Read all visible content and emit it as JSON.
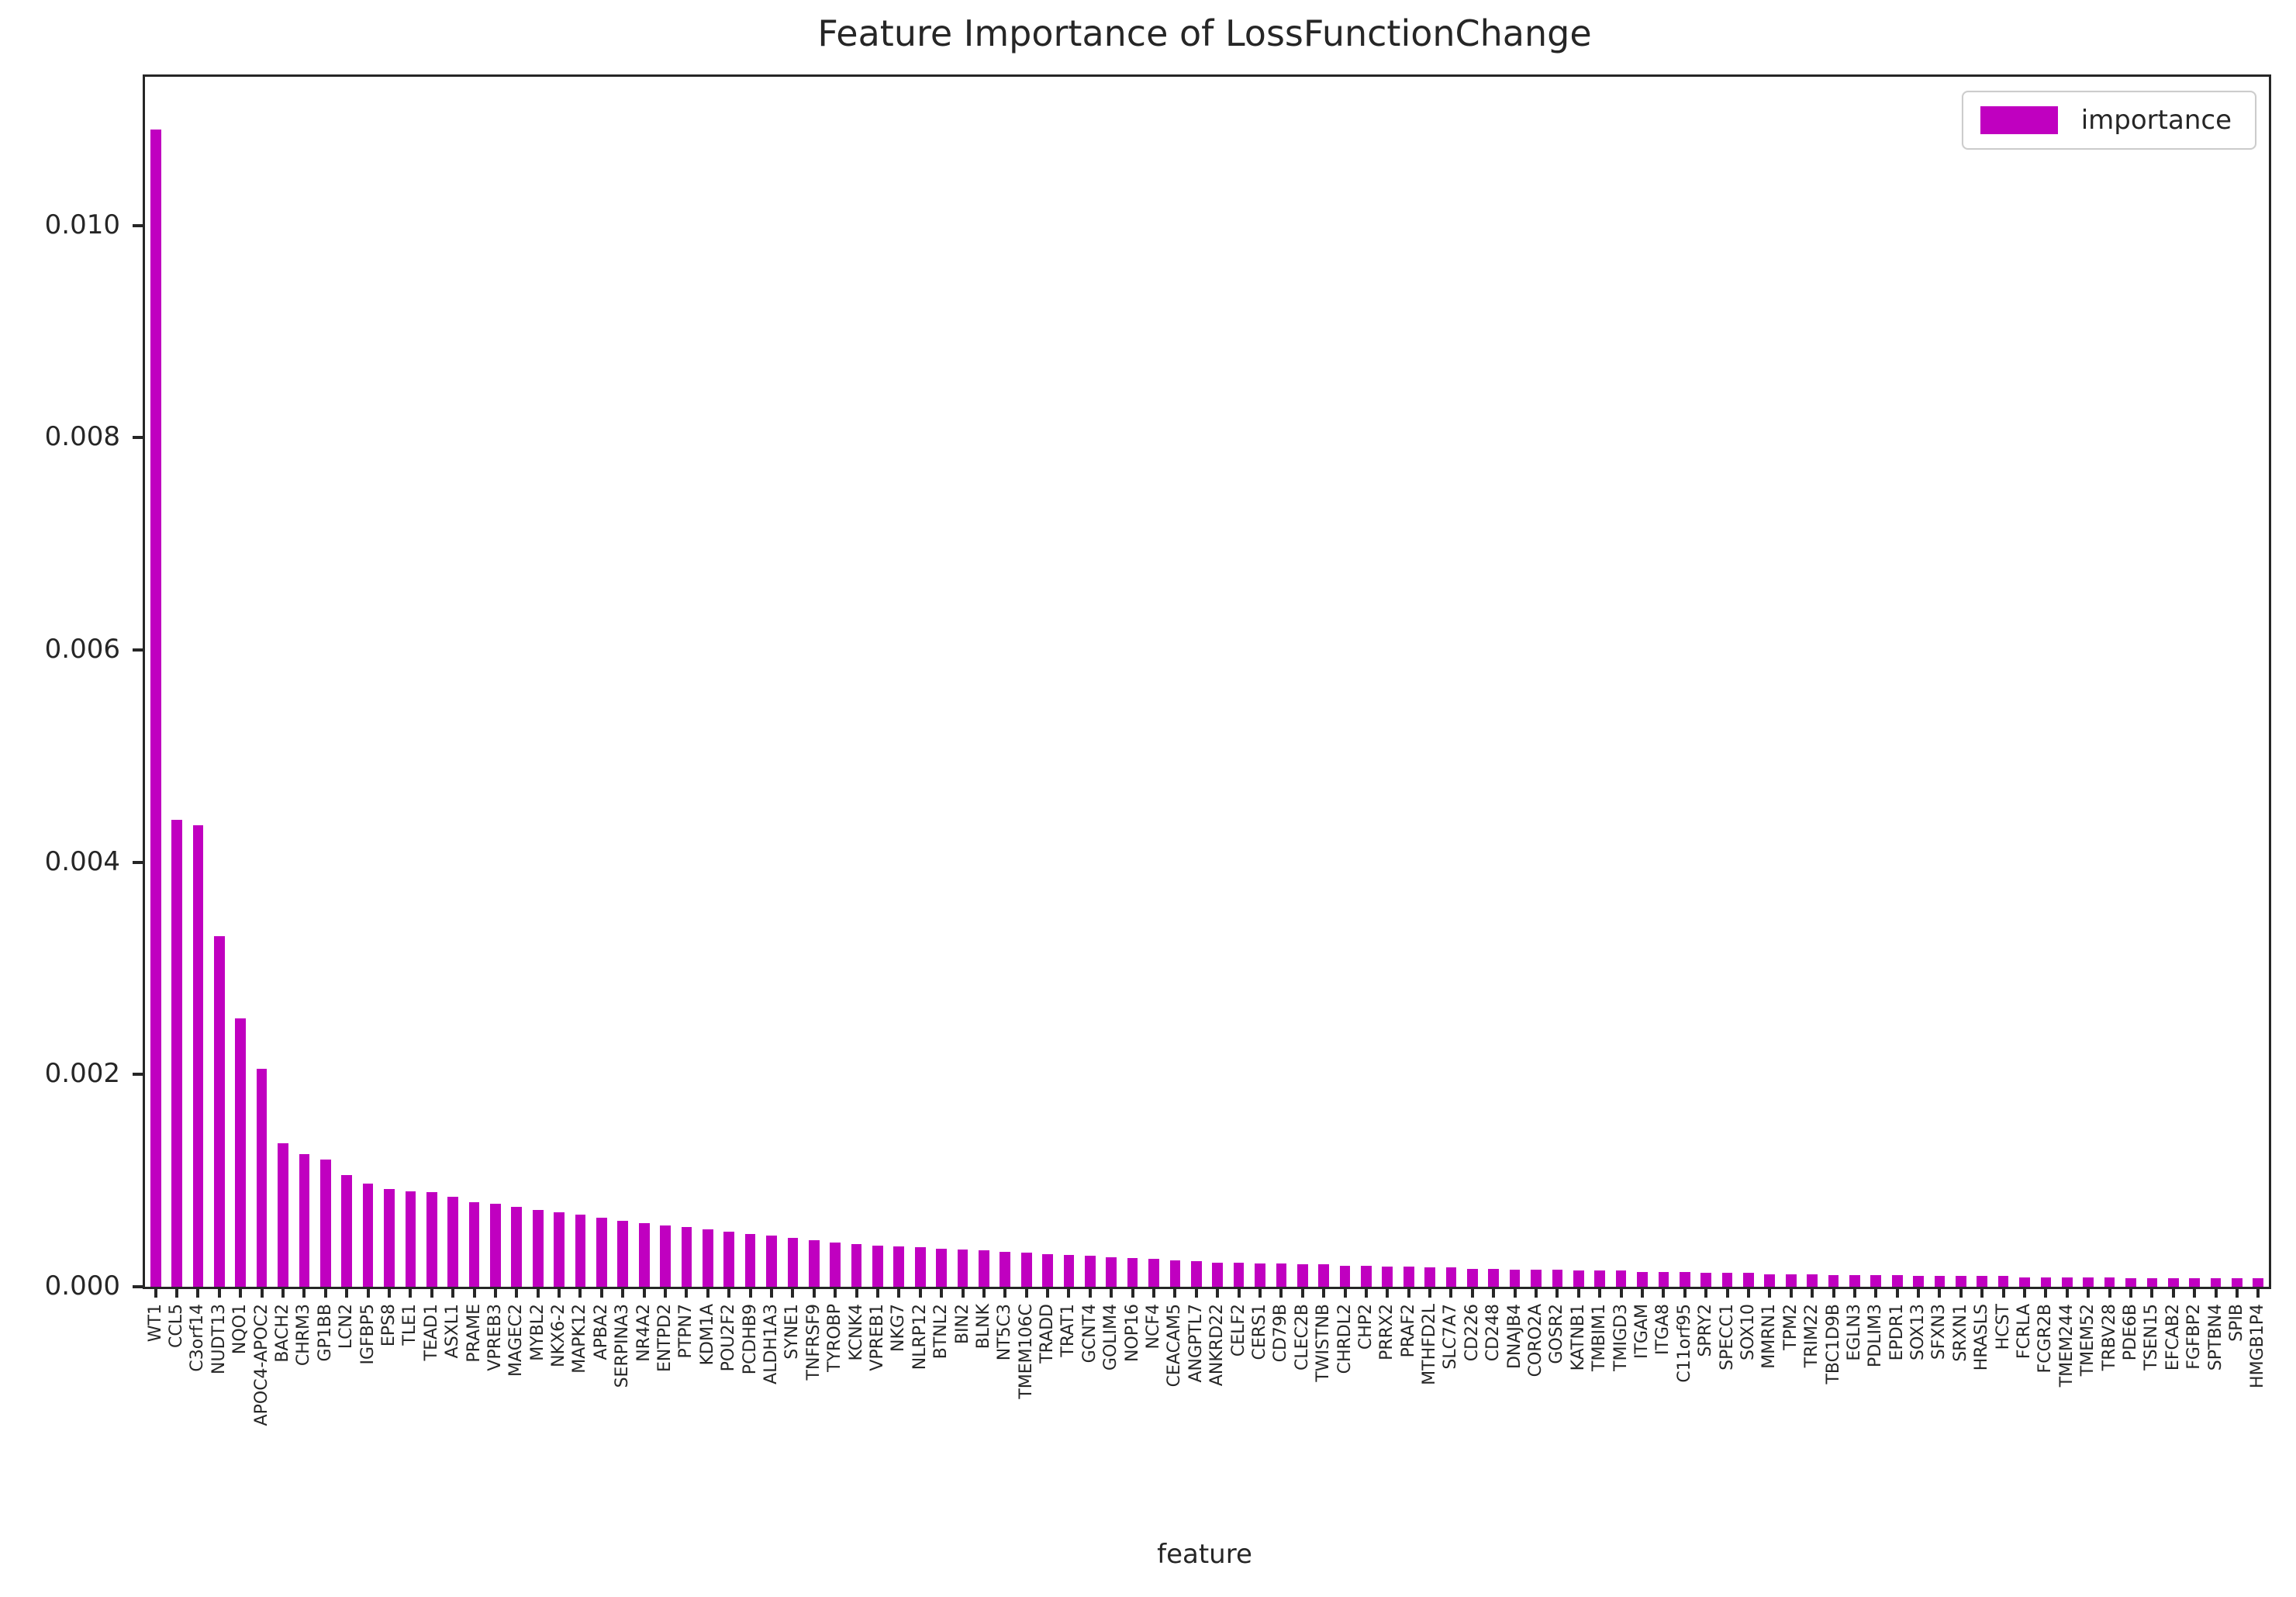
{
  "chart_data": {
    "type": "bar",
    "title": "Feature Importance of LossFunctionChange",
    "xlabel": "feature",
    "ylabel": "",
    "legend": [
      "importance"
    ],
    "legend_position": "upper right",
    "grid": false,
    "bar_color": "#C000C0",
    "axis_color": "#262626",
    "ylim": [
      0,
      0.0114
    ],
    "y_ticks": [
      0.0,
      0.002,
      0.004,
      0.006,
      0.008,
      0.01
    ],
    "y_tick_labels": [
      "0.000",
      "0.002",
      "0.004",
      "0.006",
      "0.008",
      "0.010"
    ],
    "categories": [
      "WT1",
      "CCL5",
      "C3orf14",
      "NUDT13",
      "NQO1",
      "APOC4-APOC2",
      "BACH2",
      "CHRM3",
      "GP1BB",
      "LCN2",
      "IGFBP5",
      "EPS8",
      "TLE1",
      "TEAD1",
      "ASXL1",
      "PRAME",
      "VPREB3",
      "MAGEC2",
      "MYBL2",
      "NKX6-2",
      "MAPK12",
      "APBA2",
      "SERPINA3",
      "NR4A2",
      "ENTPD2",
      "PTPN7",
      "KDM1A",
      "POU2F2",
      "PCDHB9",
      "ALDH1A3",
      "SYNE1",
      "TNFRSF9",
      "TYROBP",
      "KCNK4",
      "VPREB1",
      "NKG7",
      "NLRP12",
      "BTNL2",
      "BIN2",
      "BLNK",
      "NT5C3",
      "TMEM106C",
      "TRADD",
      "TRAT1",
      "GCNT4",
      "GOLIM4",
      "NOP16",
      "NCF4",
      "CEACAM5",
      "ANGPTL7",
      "ANKRD22",
      "CELF2",
      "CERS1",
      "CD79B",
      "CLEC2B",
      "TWISTNB",
      "CHRDL2",
      "CHP2",
      "PRRX2",
      "PRAF2",
      "MTHFD2L",
      "SLC7A7",
      "CD226",
      "CD248",
      "DNAJB4",
      "CORO2A",
      "GOSR2",
      "KATNB1",
      "TMBIM1",
      "TMIGD3",
      "ITGAM",
      "ITGA8",
      "C11orf95",
      "SPRY2",
      "SPECC1",
      "SOX10",
      "MMRN1",
      "TPM2",
      "TRIM22",
      "TBC1D9B",
      "EGLN3",
      "PDLIM3",
      "EPDR1",
      "SOX13",
      "SFXN3",
      "SRXN1",
      "HRASLS",
      "HCST",
      "FCRLA",
      "FCGR2B",
      "TMEM244",
      "TMEM52",
      "TRBV28",
      "PDE6B",
      "TSEN15",
      "EFCAB2",
      "FGFBP2",
      "SPTBN4",
      "SPIB",
      "HMGB1P4"
    ],
    "values": [
      0.0109,
      0.0044,
      0.00435,
      0.0033,
      0.00253,
      0.00205,
      0.00135,
      0.00125,
      0.0012,
      0.00105,
      0.00097,
      0.00092,
      0.0009,
      0.00089,
      0.00085,
      0.0008,
      0.00078,
      0.00075,
      0.00072,
      0.0007,
      0.00068,
      0.00065,
      0.00062,
      0.0006,
      0.00058,
      0.00056,
      0.00054,
      0.00052,
      0.0005,
      0.00048,
      0.00046,
      0.00044,
      0.00042,
      0.0004,
      0.00039,
      0.00038,
      0.00037,
      0.00036,
      0.00035,
      0.00034,
      0.00033,
      0.00032,
      0.00031,
      0.0003,
      0.00029,
      0.00028,
      0.00027,
      0.00026,
      0.00025,
      0.00024,
      0.00023,
      0.00023,
      0.00022,
      0.00022,
      0.00021,
      0.00021,
      0.0002,
      0.0002,
      0.00019,
      0.00019,
      0.00018,
      0.00018,
      0.00017,
      0.00017,
      0.00016,
      0.00016,
      0.00016,
      0.00015,
      0.00015,
      0.00015,
      0.00014,
      0.00014,
      0.00014,
      0.00013,
      0.00013,
      0.00013,
      0.00012,
      0.00012,
      0.00012,
      0.00011,
      0.00011,
      0.00011,
      0.00011,
      0.0001,
      0.0001,
      0.0001,
      0.0001,
      0.0001,
      9e-05,
      9e-05,
      9e-05,
      9e-05,
      9e-05,
      8e-05,
      8e-05,
      8e-05,
      8e-05,
      8e-05,
      8e-05,
      8e-05
    ]
  }
}
